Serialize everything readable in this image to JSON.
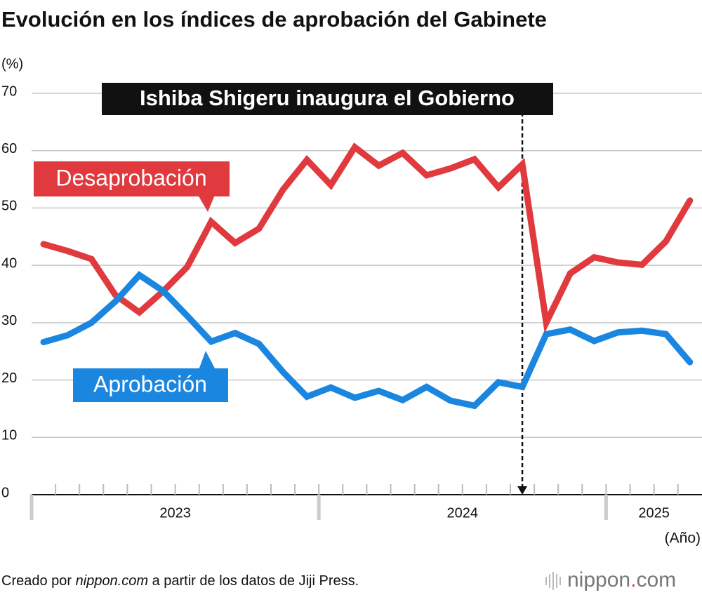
{
  "chart_data": {
    "type": "line",
    "title": "Evolución en los índices de aprobación del Gabinete",
    "y_label": "(%)",
    "x_label": "(Año)",
    "categories": [
      null,
      null,
      null,
      null,
      null,
      null,
      null,
      null,
      null,
      null,
      null,
      null,
      null,
      null,
      null,
      null,
      null,
      null,
      null,
      null,
      null,
      null,
      null,
      null,
      null,
      null,
      null,
      null
    ],
    "year_groups": [
      {
        "label": "2023",
        "months": 12
      },
      {
        "label": "2024",
        "months": 12
      },
      {
        "label": "2025",
        "months": 4
      }
    ],
    "series": [
      {
        "name": "Desaprobación",
        "color": "#e0393e",
        "values": [
          43.7,
          42.5,
          41.1,
          34.8,
          31.8,
          35.5,
          39.7,
          47.6,
          43.9,
          46.4,
          53.2,
          58.4,
          54.0,
          60.6,
          57.4,
          59.6,
          55.7,
          56.9,
          58.5,
          53.6,
          57.6,
          30.0,
          38.6,
          41.4,
          40.5,
          40.1,
          44.2,
          51.3
        ]
      },
      {
        "name": "Aprobación",
        "color": "#1a86e0",
        "values": [
          26.6,
          27.8,
          30.0,
          33.7,
          38.3,
          35.5,
          31.2,
          26.7,
          28.2,
          26.3,
          21.4,
          17.1,
          18.7,
          16.9,
          18.1,
          16.5,
          18.8,
          16.4,
          15.5,
          19.6,
          18.8,
          28.0,
          28.8,
          26.8,
          28.3,
          28.6,
          28.0,
          23.1
        ]
      }
    ],
    "ylim": [
      0,
      70
    ],
    "yticks": [
      0,
      10,
      20,
      30,
      40,
      50,
      60,
      70
    ],
    "grid": true,
    "annotation": "Ishiba Shigeru inaugura el Gobierno",
    "source": {
      "prefix": "Creado por ",
      "site": "nippon.com",
      "suffix": " a partir de los datos de Jiji Press."
    },
    "brand": {
      "name": "nippon",
      "dot": ".",
      "tld": "com"
    }
  }
}
